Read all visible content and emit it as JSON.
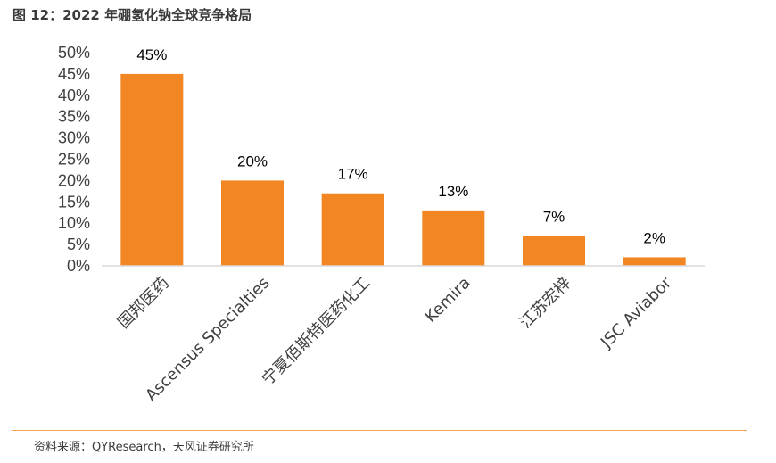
{
  "figure": {
    "title": "图 12：2022 年硼氢化钠全球竞争格局",
    "source": "资料来源：QYResearch，天风证券研究所"
  },
  "colors": {
    "bar": "#f28622",
    "rule": "#f0a050",
    "axis": "#d9d9d9"
  },
  "chart_data": {
    "type": "bar",
    "title": "",
    "xlabel": "",
    "ylabel": "",
    "categories": [
      "国邦医药",
      "Ascensus Specialties",
      "宁夏佰斯特医药化工",
      "Kemira",
      "江苏宏梓",
      "JSC Aviabor"
    ],
    "values": [
      45,
      20,
      17,
      13,
      7,
      2
    ],
    "data_labels": [
      "45%",
      "20%",
      "17%",
      "13%",
      "7%",
      "2%"
    ],
    "ylim": [
      0,
      50
    ],
    "yticks": [
      0,
      5,
      10,
      15,
      20,
      25,
      30,
      35,
      40,
      45,
      50
    ],
    "ytick_labels": [
      "0%",
      "5%",
      "10%",
      "15%",
      "20%",
      "25%",
      "30%",
      "35%",
      "40%",
      "45%",
      "50%"
    ],
    "grid": false,
    "legend": "none"
  }
}
